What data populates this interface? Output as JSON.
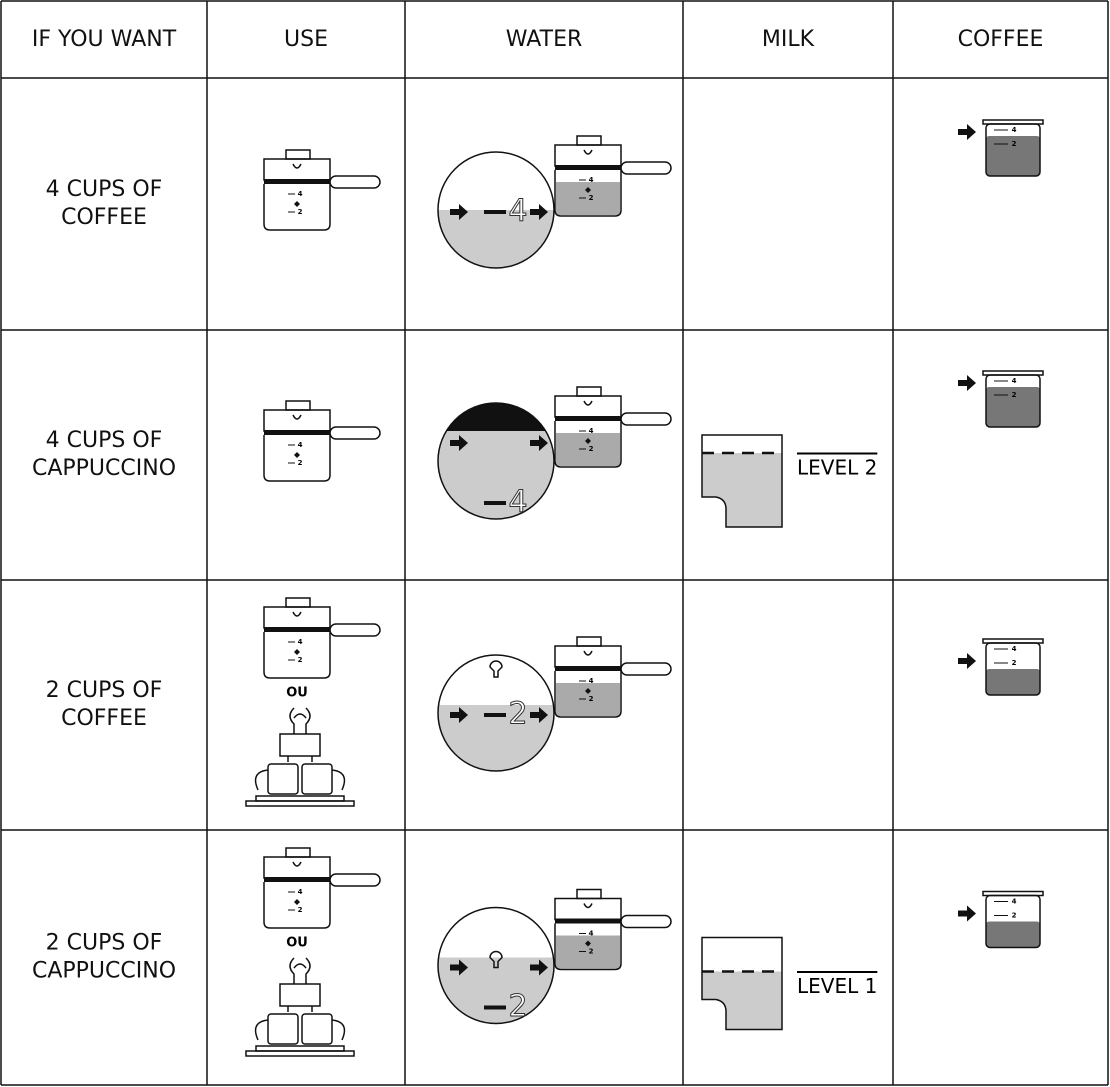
{
  "table": {
    "header": [
      "IF YOU WANT",
      "USE",
      "WATER",
      "MILK",
      "COFFEE"
    ],
    "rows": [
      {
        "want": [
          "4 CUPS OF",
          "COFFEE"
        ],
        "gauge": "4"
      },
      {
        "want": [
          "4 CUPS OF",
          "CAPPUCCINO"
        ],
        "gauge": "4",
        "milk": "LEVEL 2"
      },
      {
        "want": [
          "2 CUPS OF",
          "COFFEE"
        ],
        "or": "OU",
        "gauge": "2"
      },
      {
        "want": [
          "2 CUPS OF",
          "CAPPUCCINO"
        ],
        "or": "OU",
        "gauge": "2",
        "milk": "LEVEL 1"
      }
    ],
    "carafe_marks": [
      "4",
      "2"
    ],
    "beaker_marks": [
      "4",
      "2"
    ]
  }
}
